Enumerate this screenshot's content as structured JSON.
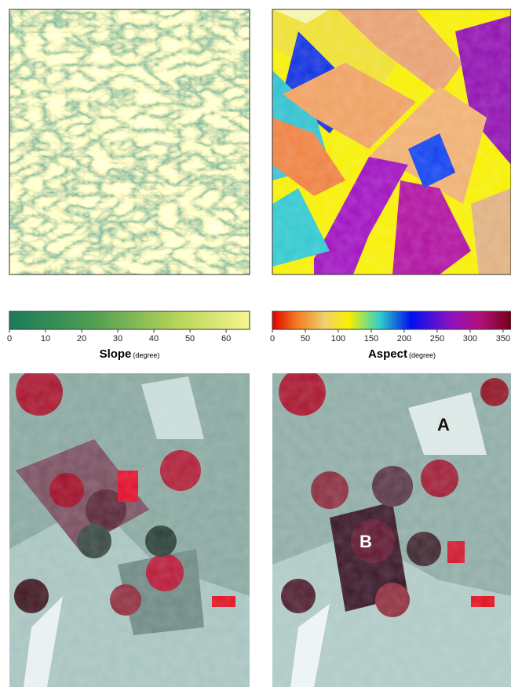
{
  "colorbars": [
    {
      "label": "Slope",
      "unit": "(degree)",
      "range": [
        0,
        66.5
      ],
      "ticks": [
        0,
        10,
        20,
        30,
        40,
        50,
        60
      ]
    },
    {
      "label": "Aspect",
      "unit": "(degree)",
      "range": [
        0,
        362
      ],
      "ticks": [
        0,
        50,
        100,
        150,
        200,
        250,
        300,
        350
      ]
    }
  ],
  "annotations": [
    "A",
    "B"
  ]
}
